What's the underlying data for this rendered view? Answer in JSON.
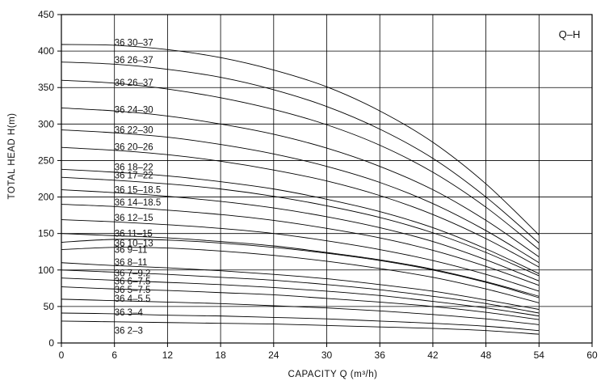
{
  "chart_data": {
    "type": "line",
    "badge": "Q–H",
    "xlabel": "CAPACITY  Q (m³/h)",
    "ylabel": "TOTAL HEAD  H(m)",
    "xlim": [
      0,
      60
    ],
    "ylim": [
      0,
      450
    ],
    "xticks": [
      0,
      6,
      12,
      18,
      24,
      30,
      36,
      42,
      48,
      54,
      60
    ],
    "yticks": [
      0,
      50,
      100,
      150,
      200,
      250,
      300,
      350,
      400,
      450
    ],
    "grid": true,
    "series": [
      {
        "name": "36 30–37",
        "x": [
          0,
          6,
          12,
          18,
          24,
          30,
          36,
          42,
          48,
          54
        ],
        "y": [
          409,
          408,
          402,
          391,
          374,
          351,
          318,
          275,
          218,
          148
        ]
      },
      {
        "name": "36 26–37",
        "x": [
          0,
          6,
          12,
          18,
          24,
          30,
          36,
          42,
          48,
          54
        ],
        "y": [
          385,
          382,
          375,
          364,
          347,
          324,
          293,
          253,
          200,
          137
        ]
      },
      {
        "name": "36 26–37",
        "x": [
          0,
          6,
          12,
          18,
          24,
          30,
          36,
          42,
          48,
          54
        ],
        "y": [
          360,
          356,
          348,
          336,
          320,
          299,
          271,
          234,
          186,
          128
        ]
      },
      {
        "name": "36 24–30",
        "x": [
          0,
          6,
          12,
          18,
          24,
          30,
          36,
          42,
          48,
          54
        ],
        "y": [
          322,
          318,
          311,
          300,
          286,
          267,
          242,
          210,
          168,
          118
        ]
      },
      {
        "name": "36 22–30",
        "x": [
          0,
          6,
          12,
          18,
          24,
          30,
          36,
          42,
          48,
          54
        ],
        "y": [
          292,
          288,
          282,
          272,
          259,
          242,
          220,
          191,
          154,
          110
        ]
      },
      {
        "name": "36 20–26",
        "x": [
          0,
          6,
          12,
          18,
          24,
          30,
          36,
          42,
          48,
          54
        ],
        "y": [
          268,
          264,
          258,
          249,
          237,
          222,
          202,
          176,
          143,
          104
        ]
      },
      {
        "name": "36 18–22",
        "x": [
          0,
          6,
          12,
          18,
          24,
          30,
          36,
          42,
          48,
          54
        ],
        "y": [
          238,
          234,
          229,
          221,
          211,
          197,
          180,
          158,
          129,
          95
        ]
      },
      {
        "name": "36 17–22",
        "x": [
          0,
          6,
          12,
          18,
          24,
          30,
          36,
          42,
          48,
          54
        ],
        "y": [
          227,
          223,
          218,
          211,
          201,
          188,
          172,
          151,
          124,
          92
        ]
      },
      {
        "name": "36 15–18.5",
        "x": [
          0,
          6,
          12,
          18,
          24,
          30,
          36,
          42,
          48,
          54
        ],
        "y": [
          210,
          206,
          201,
          194,
          185,
          173,
          158,
          139,
          114,
          85
        ]
      },
      {
        "name": "36 14–18.5",
        "x": [
          0,
          6,
          12,
          18,
          24,
          30,
          36,
          42,
          48,
          54
        ],
        "y": [
          190,
          187,
          182,
          176,
          168,
          157,
          144,
          127,
          105,
          79
        ]
      },
      {
        "name": "36 12–15",
        "x": [
          0,
          6,
          12,
          18,
          24,
          30,
          36,
          42,
          48,
          54
        ],
        "y": [
          169,
          166,
          162,
          157,
          150,
          140,
          128,
          113,
          94,
          71
        ]
      },
      {
        "name": "36 11–15",
        "x": [
          0,
          6,
          12,
          18,
          24,
          30,
          36,
          42,
          48,
          54
        ],
        "y": [
          150,
          147,
          144,
          139,
          133,
          124,
          114,
          101,
          84,
          64
        ]
      },
      {
        "name": "36 10–13",
        "x": [
          0,
          6,
          12,
          18,
          24,
          30,
          36,
          42,
          48,
          54
        ],
        "y": [
          138,
          142,
          141,
          137,
          131,
          123,
          113,
          100,
          83,
          62
        ]
      },
      {
        "name": "36 9–11",
        "x": [
          0,
          6,
          12,
          18,
          24,
          30,
          36,
          42,
          48,
          54
        ],
        "y": [
          128,
          131,
          130,
          126,
          120,
          112,
          102,
          90,
          74,
          55
        ]
      },
      {
        "name": "36 8–11",
        "x": [
          0,
          6,
          12,
          18,
          24,
          30,
          36,
          42,
          48,
          54
        ],
        "y": [
          110,
          106,
          103,
          99,
          94,
          88,
          80,
          71,
          59,
          46
        ]
      },
      {
        "name": "36 7–9.2",
        "x": [
          0,
          6,
          12,
          18,
          24,
          30,
          36,
          42,
          48,
          54
        ],
        "y": [
          100,
          97,
          94,
          90,
          86,
          80,
          73,
          64,
          54,
          41
        ]
      },
      {
        "name": "36 6–7.5",
        "x": [
          0,
          6,
          12,
          18,
          24,
          30,
          36,
          42,
          48,
          54
        ],
        "y": [
          89,
          86,
          83,
          80,
          76,
          71,
          65,
          57,
          48,
          37
        ]
      },
      {
        "name": "36 5–7.5",
        "x": [
          0,
          6,
          12,
          18,
          24,
          30,
          36,
          42,
          48,
          54
        ],
        "y": [
          77,
          74,
          72,
          69,
          66,
          61,
          56,
          50,
          42,
          32
        ]
      },
      {
        "name": "36 4–5.5",
        "x": [
          0,
          6,
          12,
          18,
          24,
          30,
          36,
          42,
          48,
          54
        ],
        "y": [
          60,
          58,
          56,
          54,
          51,
          48,
          44,
          39,
          33,
          25
        ]
      },
      {
        "name": "36 3–4",
        "x": [
          0,
          6,
          12,
          18,
          24,
          30,
          36,
          42,
          48,
          54
        ],
        "y": [
          41,
          40,
          38,
          37,
          35,
          33,
          30,
          27,
          23,
          17
        ]
      },
      {
        "name": "36 2–3",
        "x": [
          0,
          6,
          12,
          18,
          24,
          30,
          36,
          42,
          48,
          54
        ],
        "y": [
          30,
          29,
          28,
          27,
          26,
          24,
          22,
          20,
          17,
          12
        ]
      }
    ],
    "label_x": 6,
    "label_y": [
      412,
      388,
      357,
      320,
      292,
      269,
      241,
      230,
      210,
      193,
      172,
      150,
      137,
      128,
      111,
      96,
      85,
      73,
      61,
      42,
      17
    ]
  }
}
